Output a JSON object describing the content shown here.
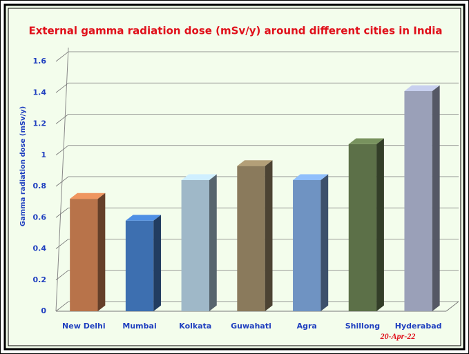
{
  "chart_data": {
    "type": "bar3d",
    "title": "External gamma radiation dose (mSv/y) around different cities in India",
    "y_label": "Gamma radiation dose (mSv/y)",
    "annotation": "20-Apr-22",
    "categories": [
      "New Delhi",
      "Mumbai",
      "Kolkata",
      "Guwahati",
      "Agra",
      "Shillong",
      "Hyderabad"
    ],
    "values": [
      0.72,
      0.58,
      0.84,
      0.93,
      0.84,
      1.07,
      1.41
    ],
    "colors": [
      "#b8734a",
      "#3d6fb0",
      "#9fb8c8",
      "#8a7a5c",
      "#6f93c2",
      "#5c7048",
      "#9aa0b8"
    ],
    "ylim": [
      0,
      1.6
    ],
    "yticks": [
      0,
      0.2,
      0.4,
      0.6,
      0.8,
      1,
      1.2,
      1.4,
      1.6
    ],
    "grid": true
  }
}
